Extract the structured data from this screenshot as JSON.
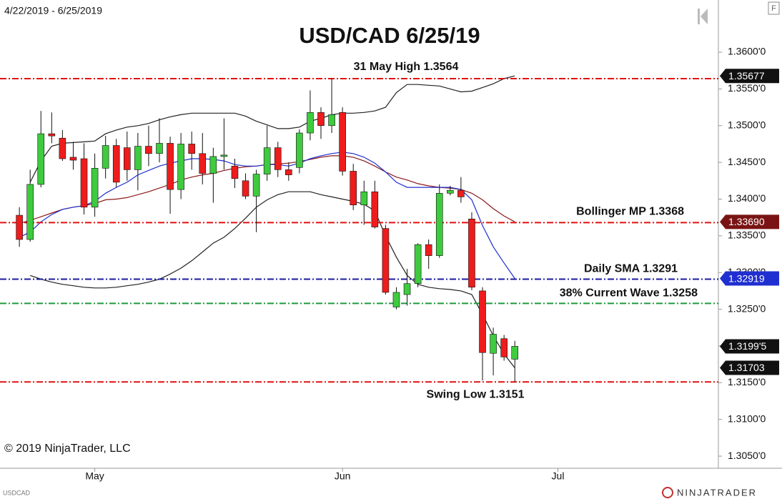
{
  "chart_data": {
    "type": "candlestick",
    "title": "USD/CAD 6/25/19",
    "subtitle": "4/22/2019 - 6/25/2019",
    "copyright": "© 2019 NinjaTrader, LLC",
    "instrument": "USDCAD",
    "logo_text": "NINJATRADER",
    "panel_button": "F",
    "grid": false,
    "up_color": "#3ecb3e",
    "down_color": "#ee1c1c",
    "xlim": [
      -1.8,
      64.9
    ],
    "xticks": [
      {
        "value": 7,
        "label": "May"
      },
      {
        "value": 30,
        "label": "Jun"
      },
      {
        "value": 50,
        "label": "Jul"
      }
    ],
    "ylim": [
      1.30335,
      1.36711
    ],
    "yticks": [
      {
        "value": 1.305,
        "label": "1.3050'0"
      },
      {
        "value": 1.31,
        "label": "1.3100'0"
      },
      {
        "value": 1.315,
        "label": "1.3150'0"
      },
      {
        "value": 1.32,
        "label": "1.3200'0"
      },
      {
        "value": 1.325,
        "label": "1.3250'0"
      },
      {
        "value": 1.33,
        "label": "1.3300'0"
      },
      {
        "value": 1.335,
        "label": "1.3350'0"
      },
      {
        "value": 1.34,
        "label": "1.3400'0"
      },
      {
        "value": 1.345,
        "label": "1.3450'0"
      },
      {
        "value": 1.35,
        "label": "1.3500'0"
      },
      {
        "value": 1.355,
        "label": "1.3550'0"
      },
      {
        "value": 1.36,
        "label": "1.3600'0"
      }
    ],
    "open": [
      1.3378,
      1.3345,
      1.342,
      1.3489,
      1.3483,
      1.3457,
      1.3455,
      1.3389,
      1.3442,
      1.3473,
      1.347,
      1.344,
      1.3472,
      1.3462,
      1.3476,
      1.3413,
      1.3475,
      1.3462,
      1.3435,
      1.3458,
      1.3445,
      1.3425,
      1.3404,
      1.3434,
      1.347,
      1.344,
      1.3443,
      1.349,
      1.3518,
      1.35,
      1.3518,
      1.3438,
      1.3392,
      1.341,
      1.336,
      1.3253,
      1.327,
      1.3285,
      1.3338,
      1.3323,
      1.3408,
      1.3412,
      1.3373,
      1.3275,
      1.319,
      1.321,
      1.3182
    ],
    "high": [
      1.3389,
      1.344,
      1.352,
      1.3518,
      1.3494,
      1.3478,
      1.3476,
      1.3462,
      1.3486,
      1.3482,
      1.3492,
      1.349,
      1.35,
      1.351,
      1.3485,
      1.349,
      1.3492,
      1.349,
      1.347,
      1.351,
      1.3455,
      1.3435,
      1.344,
      1.35,
      1.3478,
      1.345,
      1.3495,
      1.3548,
      1.3525,
      1.3564,
      1.3525,
      1.3448,
      1.3425,
      1.3425,
      1.3365,
      1.328,
      1.3305,
      1.334,
      1.3345,
      1.342,
      1.3418,
      1.343,
      1.3382,
      1.328,
      1.3225,
      1.3215,
      1.3207
    ],
    "low": [
      1.3335,
      1.3342,
      1.3416,
      1.3476,
      1.3452,
      1.344,
      1.3379,
      1.3376,
      1.3428,
      1.3416,
      1.3425,
      1.3412,
      1.3445,
      1.345,
      1.338,
      1.34,
      1.344,
      1.342,
      1.3395,
      1.344,
      1.3415,
      1.34,
      1.3355,
      1.3425,
      1.343,
      1.3425,
      1.3435,
      1.348,
      1.3482,
      1.349,
      1.3432,
      1.3385,
      1.3365,
      1.336,
      1.327,
      1.325,
      1.3255,
      1.328,
      1.3305,
      1.332,
      1.3405,
      1.3395,
      1.3276,
      1.3153,
      1.316,
      1.318,
      1.3151
    ],
    "close": [
      1.3345,
      1.342,
      1.3489,
      1.3486,
      1.3455,
      1.3453,
      1.3389,
      1.3442,
      1.3473,
      1.3423,
      1.344,
      1.3472,
      1.3462,
      1.3476,
      1.3413,
      1.3475,
      1.3462,
      1.3435,
      1.3458,
      1.346,
      1.3428,
      1.3404,
      1.3434,
      1.347,
      1.344,
      1.3433,
      1.349,
      1.3518,
      1.35,
      1.3515,
      1.3438,
      1.3392,
      1.341,
      1.3362,
      1.3273,
      1.3273,
      1.3285,
      1.3338,
      1.3323,
      1.3408,
      1.3412,
      1.3403,
      1.328,
      1.3191,
      1.3216,
      1.3185,
      1.31995
    ],
    "series": [
      {
        "color": "#222222",
        "values": [
          null,
          1.3423,
          1.3452,
          1.3472,
          1.3476,
          1.3477,
          1.3478,
          1.3479,
          1.3489,
          1.3494,
          1.3498,
          1.35,
          1.3503,
          1.3508,
          1.3512,
          1.3515,
          1.3517,
          1.3517,
          1.3517,
          1.3517,
          1.3517,
          1.3513,
          1.3506,
          1.3501,
          1.3496,
          1.3496,
          1.3498,
          1.3506,
          1.351,
          1.3515,
          1.3517,
          1.3517,
          1.3518,
          1.352,
          1.3525,
          1.3545,
          1.3556,
          1.3556,
          1.3555,
          1.3554,
          1.355,
          1.3546,
          1.3547,
          1.3552,
          1.3557,
          1.3564,
          1.35677
        ]
      },
      {
        "color": "#222222",
        "values": [
          null,
          1.3296,
          1.3291,
          1.3287,
          1.3284,
          1.3282,
          1.328,
          1.3279,
          1.3279,
          1.328,
          1.3282,
          1.3284,
          1.3287,
          1.3291,
          1.3298,
          1.3306,
          1.3316,
          1.3328,
          1.334,
          1.3348,
          1.336,
          1.3374,
          1.3389,
          1.3399,
          1.3406,
          1.341,
          1.341,
          1.341,
          1.3406,
          1.3403,
          1.34,
          1.3397,
          1.3393,
          1.3384,
          1.335,
          1.3321,
          1.3296,
          1.3284,
          1.328,
          1.3278,
          1.3277,
          1.3275,
          1.327,
          1.3243,
          1.3214,
          1.3189,
          1.31703
        ]
      },
      {
        "color": "#8b1a1a",
        "values": [
          1.3367,
          1.3371,
          1.3376,
          1.3381,
          1.3386,
          1.3389,
          1.3391,
          1.3394,
          1.3399,
          1.34,
          1.3402,
          1.3406,
          1.341,
          1.3415,
          1.342,
          1.3426,
          1.343,
          1.3433,
          1.3435,
          1.3439,
          1.3442,
          1.3444,
          1.3445,
          1.3447,
          1.3448,
          1.3449,
          1.3451,
          1.3454,
          1.3457,
          1.3459,
          1.3459,
          1.3457,
          1.3452,
          1.3445,
          1.3437,
          1.343,
          1.3426,
          1.3421,
          1.3418,
          1.3416,
          1.3415,
          1.3413,
          1.3408,
          1.3399,
          1.3387,
          1.3377,
          1.3369
        ]
      },
      {
        "color": "#1f2fd0",
        "values": [
          1.3348,
          1.3355,
          1.3369,
          1.3379,
          1.3386,
          1.3389,
          1.3391,
          1.3397,
          1.3408,
          1.3416,
          1.3423,
          1.3433,
          1.3439,
          1.3445,
          1.3449,
          1.3452,
          1.3455,
          1.3455,
          1.3454,
          1.3452,
          1.3447,
          1.3445,
          1.3445,
          1.3447,
          1.3447,
          1.3445,
          1.3449,
          1.3455,
          1.3459,
          1.3462,
          1.3464,
          1.3462,
          1.3457,
          1.3449,
          1.3437,
          1.3423,
          1.3416,
          1.3416,
          1.3416,
          1.3416,
          1.3416,
          1.3413,
          1.3399,
          1.3364,
          1.3335,
          1.3313,
          1.32919
        ]
      }
    ],
    "hlines": [
      {
        "label": "31 May High 1.3564",
        "value": 1.3564,
        "color": "#e01010"
      },
      {
        "label": "Bollinger MP 1.3368",
        "value": 1.3368,
        "color": "#e01010"
      },
      {
        "label": "Daily SMA 1.3291",
        "value": 1.3291,
        "color": "#1a1aa0"
      },
      {
        "label": "38% Current Wave 1.3258",
        "value": 1.3258,
        "color": "#1e9a3c"
      },
      {
        "label": "Swing Low 1.3151",
        "value": 1.3151,
        "color": "#e01010"
      }
    ],
    "price_tags": [
      {
        "value": 1.35677,
        "label": "1.35677",
        "color": "#111111"
      },
      {
        "value": 1.3369,
        "label": "1.33690",
        "color": "#7a1414"
      },
      {
        "value": 1.32919,
        "label": "1.32919",
        "color": "#1f2fd0"
      },
      {
        "value": 1.31995,
        "label": "1.3199'5",
        "color": "#111111"
      },
      {
        "value": 1.31703,
        "label": "1.31703",
        "color": "#111111"
      }
    ]
  }
}
